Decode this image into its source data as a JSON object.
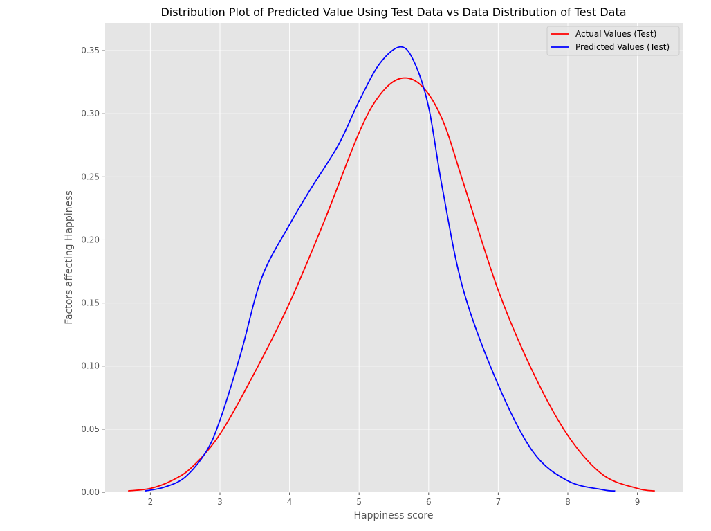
{
  "chart_data": {
    "type": "line",
    "title": "Distribution  Plot of  Predicted Value Using Test Data vs Data Distribution of Test Data",
    "xlabel": "Happiness score",
    "ylabel": "Factors affecting Happiness",
    "xlim": [
      1.35,
      9.65
    ],
    "ylim": [
      0,
      0.372
    ],
    "xticks": [
      2,
      3,
      4,
      5,
      6,
      7,
      8,
      9
    ],
    "xtick_labels": [
      "2",
      "3",
      "4",
      "5",
      "6",
      "7",
      "8",
      "9"
    ],
    "yticks": [
      0.0,
      0.05,
      0.1,
      0.15,
      0.2,
      0.25,
      0.3,
      0.35
    ],
    "ytick_labels": [
      "0.00",
      "0.05",
      "0.10",
      "0.15",
      "0.20",
      "0.25",
      "0.30",
      "0.35"
    ],
    "grid": true,
    "legend_position": "top-right",
    "series": [
      {
        "name": "Actual Values (Test)",
        "color": "#ff0000",
        "x": [
          1.68,
          2.0,
          2.3,
          2.6,
          3.0,
          3.5,
          4.0,
          4.5,
          5.0,
          5.3,
          5.6,
          5.9,
          6.2,
          6.5,
          7.0,
          7.5,
          8.0,
          8.5,
          9.0,
          9.25
        ],
        "y": [
          0.001,
          0.003,
          0.009,
          0.02,
          0.046,
          0.095,
          0.15,
          0.215,
          0.285,
          0.315,
          0.328,
          0.322,
          0.295,
          0.245,
          0.16,
          0.095,
          0.045,
          0.014,
          0.003,
          0.001
        ]
      },
      {
        "name": "Predicted Values (Test)",
        "color": "#0000ff",
        "x": [
          1.92,
          2.2,
          2.5,
          2.8,
          3.0,
          3.3,
          3.6,
          4.0,
          4.3,
          4.7,
          5.0,
          5.3,
          5.6,
          5.8,
          6.0,
          6.2,
          6.5,
          7.0,
          7.5,
          8.0,
          8.5,
          8.68
        ],
        "y": [
          0.001,
          0.004,
          0.012,
          0.032,
          0.057,
          0.11,
          0.17,
          0.212,
          0.24,
          0.275,
          0.31,
          0.34,
          0.353,
          0.34,
          0.305,
          0.24,
          0.16,
          0.085,
          0.032,
          0.009,
          0.002,
          0.001
        ]
      }
    ]
  }
}
